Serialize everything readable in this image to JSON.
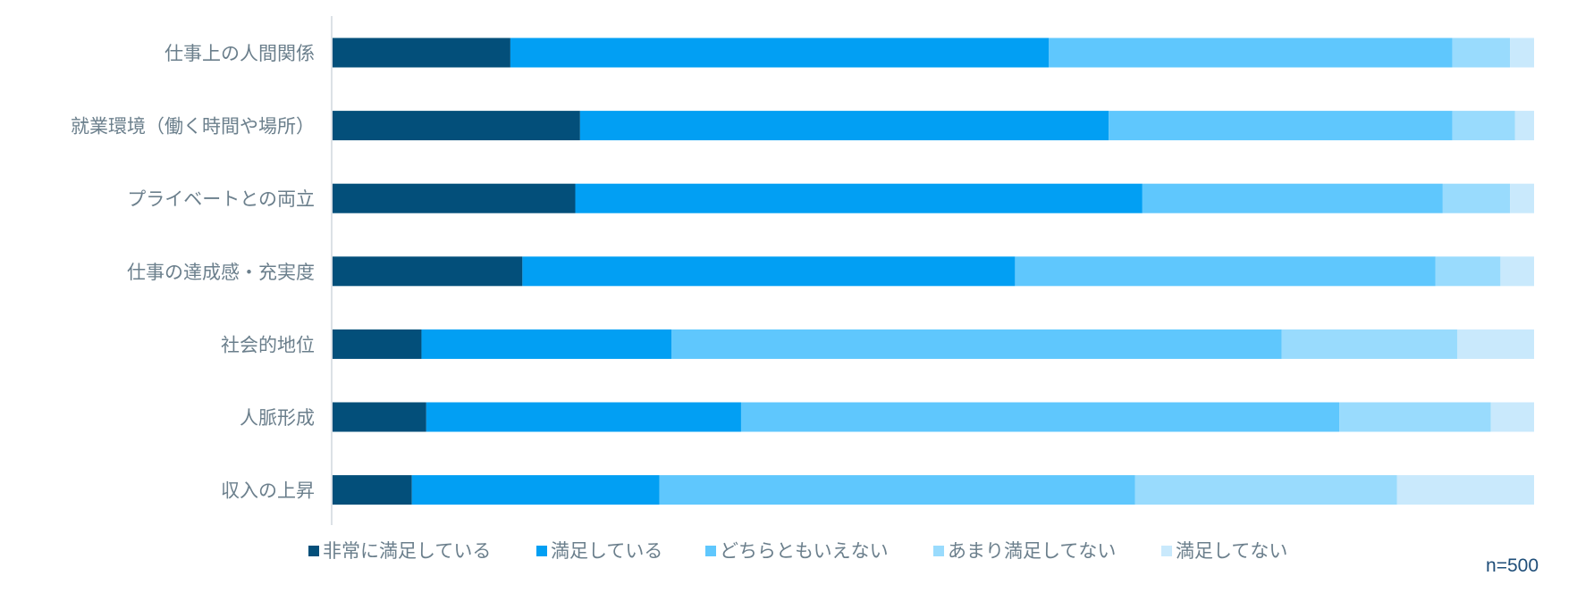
{
  "chart_data": {
    "type": "bar",
    "orientation": "horizontal",
    "stacked": "percent",
    "categories": [
      "仕事上の人間関係",
      "就業環境（働く時間や場所）",
      "プライベートとの両立",
      "仕事の達成感・充実度",
      "社会的地位",
      "人脈形成",
      "収入の上昇"
    ],
    "series": [
      {
        "name": "非常に満足している",
        "color": "#034f7a",
        "values": [
          14.8,
          20.6,
          20.2,
          15.8,
          7.4,
          7.8,
          6.6
        ]
      },
      {
        "name": "満足している",
        "color": "#029ff3",
        "values": [
          44.8,
          44.0,
          47.2,
          41.0,
          20.8,
          26.2,
          20.6
        ]
      },
      {
        "name": "どちらともいえない",
        "color": "#5fc7fd",
        "values": [
          33.6,
          28.6,
          25.0,
          35.0,
          50.8,
          49.8,
          39.6
        ]
      },
      {
        "name": "あまり満足してない",
        "color": "#99dbfd",
        "values": [
          4.8,
          5.2,
          5.6,
          5.4,
          14.6,
          12.6,
          21.8
        ]
      },
      {
        "name": "満足してない",
        "color": "#c9e9fc",
        "values": [
          2.0,
          1.6,
          2.0,
          2.8,
          6.4,
          3.6,
          11.4
        ]
      }
    ],
    "xlim": [
      0,
      100
    ],
    "grid": false,
    "legend_position": "bottom",
    "annotation": "n=500"
  }
}
